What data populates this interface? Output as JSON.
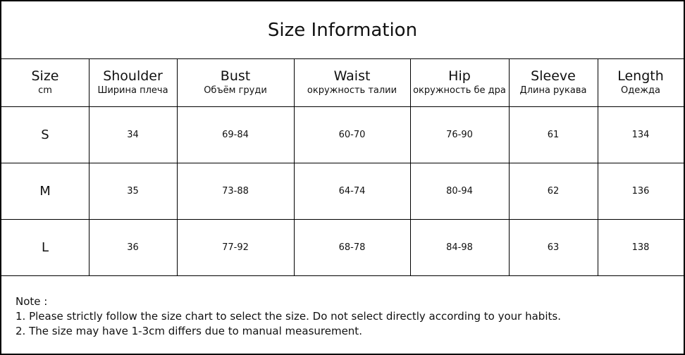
{
  "title": "Size Information",
  "columns": [
    {
      "name": "Size",
      "sub": "cm"
    },
    {
      "name": "Shoulder",
      "sub": "Ширина плеча"
    },
    {
      "name": "Bust",
      "sub": "Объём груди"
    },
    {
      "name": "Waist",
      "sub": "окружность талии"
    },
    {
      "name": "Hip",
      "sub": "окружность бе дра"
    },
    {
      "name": "Sleeve",
      "sub": "Длина рукава"
    },
    {
      "name": "Length",
      "sub": "Одежда"
    }
  ],
  "rows": [
    [
      "S",
      "34",
      "69-84",
      "60-70",
      "76-90",
      "61",
      "134"
    ],
    [
      "M",
      "35",
      "73-88",
      "64-74",
      "80-94",
      "62",
      "136"
    ],
    [
      "L",
      "36",
      "77-92",
      "68-78",
      "84-98",
      "63",
      "138"
    ]
  ],
  "note": {
    "label": "Note :",
    "lines": [
      "1. Please strictly follow the size chart to select the size. Do not select directly according to your habits.",
      "2. The size may have 1-3cm differs due to manual measurement."
    ]
  }
}
